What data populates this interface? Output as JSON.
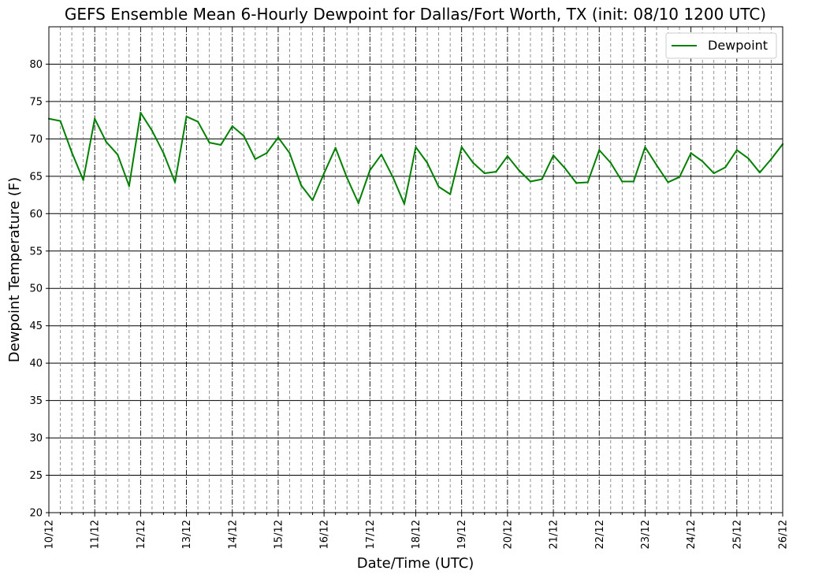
{
  "chart_data": {
    "type": "line",
    "title": "GEFS Ensemble Mean 6-Hourly Dewpoint for Dallas/Fort Worth, TX (init: 08/10 1200 UTC)",
    "xlabel": "Date/Time (UTC)",
    "ylabel": "Dewpoint Temperature (F)",
    "ylim": [
      20,
      85
    ],
    "yticks": [
      20,
      25,
      30,
      35,
      40,
      45,
      50,
      55,
      60,
      65,
      70,
      75,
      80
    ],
    "xtick_labels": [
      "10/12",
      "11/12",
      "12/12",
      "13/12",
      "14/12",
      "15/12",
      "16/12",
      "17/12",
      "18/12",
      "19/12",
      "20/12",
      "21/12",
      "22/12",
      "23/12",
      "24/12",
      "25/12",
      "26/12"
    ],
    "x_unit": "6-hour step from 10/12 12Z",
    "grid": true,
    "legend_position": "upper right",
    "series": [
      {
        "name": "Dewpoint",
        "color": "#008000",
        "values": [
          72.7,
          72.4,
          68.2,
          64.5,
          72.7,
          69.6,
          67.9,
          63.7,
          73.5,
          71.1,
          68.1,
          64.2,
          73.0,
          72.3,
          69.5,
          69.2,
          71.7,
          70.4,
          67.3,
          68.1,
          70.2,
          68.1,
          63.8,
          61.8,
          65.4,
          68.8,
          64.8,
          61.4,
          65.8,
          67.9,
          64.9,
          61.3,
          68.9,
          66.8,
          63.6,
          62.6,
          68.9,
          66.8,
          65.4,
          65.6,
          67.7,
          65.8,
          64.3,
          64.6,
          67.8,
          66.1,
          64.1,
          64.2,
          68.5,
          66.8,
          64.3,
          64.3,
          68.9,
          66.5,
          64.2,
          64.9,
          68.1,
          67.0,
          65.4,
          66.2,
          68.5,
          67.4,
          65.5,
          67.3,
          69.3
        ]
      }
    ]
  }
}
